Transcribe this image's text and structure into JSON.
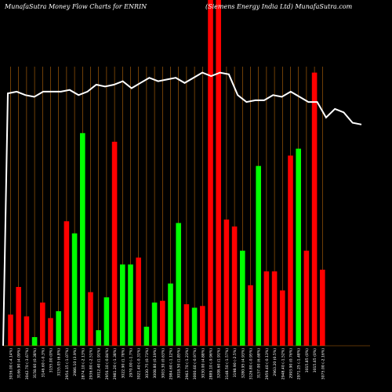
{
  "header": {
    "left": "MunafaSutra  Money Flow  Charts for ENRIN",
    "right": "(Siemens Energy India  Ltd) MunafaSutra.com"
  },
  "colors": {
    "background": "#000000",
    "up": "#00ff00",
    "down": "#ff0000",
    "grid": "#b8680c",
    "line": "#ffffff"
  },
  "chart_data": {
    "type": "bar",
    "note_units": "relative money flow bar heights (0-100) and relative price line (0-100)",
    "ylim": [
      0,
      100
    ],
    "bars": [
      {
        "value": 9,
        "color": "red",
        "label": "3036.00 (-4.14%)"
      },
      {
        "value": 17,
        "color": "red",
        "label": "3166.90 (4.09%)"
      },
      {
        "value": 8.5,
        "color": "red",
        "label": "3042.70 (-3.67%)"
      },
      {
        "value": 2.5,
        "color": "green",
        "label": "3158.60 (0.38%)"
      },
      {
        "value": 12.5,
        "color": "red",
        "label": "3146.60 (-0.3%)"
      },
      {
        "value": 8,
        "color": "red",
        "label": "3155.00 (0%)"
      },
      {
        "value": 10,
        "color": "green",
        "label": "3155.05 (6.8%)"
      },
      {
        "value": 36,
        "color": "red",
        "label": "2954.15 (-1.07%)"
      },
      {
        "value": 32.5,
        "color": "green",
        "label": "2986.10 (3.9%)"
      },
      {
        "value": 61.5,
        "color": "green",
        "label": "2874.10 (-2.13%)"
      },
      {
        "value": 15.5,
        "color": "red",
        "label": "2936.80 (-2.51%)"
      },
      {
        "value": 4.5,
        "color": "green",
        "label": "3012.40 (1.91%)"
      },
      {
        "value": 14,
        "color": "green",
        "label": "2956.10 (-0.84%)"
      },
      {
        "value": 59,
        "color": "red",
        "label": "2981.20 (-1.38%)"
      },
      {
        "value": 23.5,
        "color": "green",
        "label": "3022.90 (1.78%)"
      },
      {
        "value": 23.5,
        "color": "green",
        "label": "2970.00 (-1.7%)"
      },
      {
        "value": 25.5,
        "color": "red",
        "label": "3021.40 (-0.31%)"
      },
      {
        "value": 5.5,
        "color": "green",
        "label": "3030.75 (0.73%)"
      },
      {
        "value": 12.5,
        "color": "green",
        "label": "3008.80 (0.19%)"
      },
      {
        "value": 13,
        "color": "red",
        "label": "3003.30 (0.63%)"
      },
      {
        "value": 18,
        "color": "green",
        "label": "2984.60 (-1.12%)"
      },
      {
        "value": 35.5,
        "color": "green",
        "label": "3018.50 (1.85%)"
      },
      {
        "value": 12,
        "color": "red",
        "label": "2963.70 (-1.23%)"
      },
      {
        "value": 11,
        "color": "green",
        "label": "3000.60 (-0.97%)"
      },
      {
        "value": 11.5,
        "color": "red",
        "label": "3030.00 (4.88%)"
      },
      {
        "value": 100,
        "color": "red",
        "label": "2889.10 (-9.96%)"
      },
      {
        "value": 100,
        "color": "red",
        "label": "3208.60 (1.91%)"
      },
      {
        "value": 36.5,
        "color": "red",
        "label": "3148.50 (-1.57%)"
      },
      {
        "value": 34.5,
        "color": "red",
        "label": "3198.90 (-2.5%)"
      },
      {
        "value": 27.5,
        "color": "green",
        "label": "3280.95 (4.93%)"
      },
      {
        "value": 17.5,
        "color": "red",
        "label": "3126.80 (-0.95%)"
      },
      {
        "value": 52,
        "color": "green",
        "label": "3157.00 (6.68%)"
      },
      {
        "value": 21.5,
        "color": "red",
        "label": "2959.40 (-0.13%)"
      },
      {
        "value": 21.5,
        "color": "red",
        "label": "2963.20 (0.5%)"
      },
      {
        "value": 16,
        "color": "red",
        "label": "2948.40 (-1.52%)"
      },
      {
        "value": 55,
        "color": "red",
        "label": "2993.90 (0.76%)"
      },
      {
        "value": 57,
        "color": "green",
        "label": "2971.25 (-1.48%)"
      },
      {
        "value": 27.5,
        "color": "red",
        "label": "3015.85 (0%)"
      },
      {
        "value": 79,
        "color": "red",
        "label": "3015.65 (0%)"
      },
      {
        "value": 22,
        "color": "red",
        "label": "3075.00 (-2.16%)"
      }
    ],
    "price_line": [
      73,
      73.5,
      72.5,
      72,
      73.5,
      73.5,
      73.5,
      74,
      72.5,
      73.5,
      75.5,
      75,
      75.5,
      76.5,
      74.5,
      76,
      77.5,
      76.5,
      77,
      77.5,
      76,
      77.5,
      79,
      78,
      79,
      78.5,
      72.5,
      70.5,
      71,
      71,
      72.5,
      72,
      73.5,
      72,
      70.5,
      70.5,
      66,
      68.5,
      67.5,
      64.5,
      64
    ]
  }
}
